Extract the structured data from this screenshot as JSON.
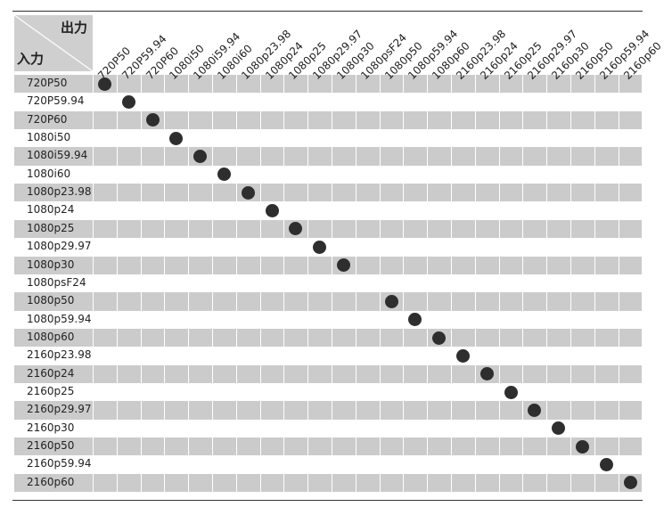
{
  "header": {
    "output_label": "出力",
    "input_label": "入力"
  },
  "columns": [
    "720P50",
    "720P59.94",
    "720P60",
    "1080i50",
    "1080i59.94",
    "1080i60",
    "1080p23.98",
    "1080p24",
    "1080p25",
    "1080p29.97",
    "1080p30",
    "1080psF24",
    "1080p50",
    "1080p59.94",
    "1080p60",
    "2160p23.98",
    "2160p24",
    "2160p25",
    "2160p29.97",
    "2160p30",
    "2160p50",
    "2160p59.94",
    "2160p60"
  ],
  "rows": [
    {
      "label": "720P50",
      "supported": [
        "720P50"
      ]
    },
    {
      "label": "720P59.94",
      "supported": [
        "720P59.94"
      ]
    },
    {
      "label": "720P60",
      "supported": [
        "720P60"
      ]
    },
    {
      "label": "1080i50",
      "supported": [
        "1080i50"
      ]
    },
    {
      "label": "1080i59.94",
      "supported": [
        "1080i59.94"
      ]
    },
    {
      "label": "1080i60",
      "supported": [
        "1080i60"
      ]
    },
    {
      "label": "1080p23.98",
      "supported": [
        "1080p23.98"
      ]
    },
    {
      "label": "1080p24",
      "supported": [
        "1080p24"
      ]
    },
    {
      "label": "1080p25",
      "supported": [
        "1080p25"
      ]
    },
    {
      "label": "1080p29.97",
      "supported": [
        "1080p29.97"
      ]
    },
    {
      "label": "1080p30",
      "supported": [
        "1080p30"
      ]
    },
    {
      "label": "1080psF24",
      "supported": []
    },
    {
      "label": "1080p50",
      "supported": [
        "1080p50"
      ]
    },
    {
      "label": "1080p59.94",
      "supported": [
        "1080p59.94"
      ]
    },
    {
      "label": "1080p60",
      "supported": [
        "1080p60"
      ]
    },
    {
      "label": "2160p23.98",
      "supported": [
        "2160p23.98"
      ]
    },
    {
      "label": "2160p24",
      "supported": [
        "2160p24"
      ]
    },
    {
      "label": "2160p25",
      "supported": [
        "2160p25"
      ]
    },
    {
      "label": "2160p29.97",
      "supported": [
        "2160p29.97"
      ]
    },
    {
      "label": "2160p30",
      "supported": [
        "2160p30"
      ]
    },
    {
      "label": "2160p50",
      "supported": [
        "2160p50"
      ]
    },
    {
      "label": "2160p59.94",
      "supported": [
        "2160p59.94"
      ]
    },
    {
      "label": "2160p60",
      "supported": [
        "2160p60"
      ]
    }
  ],
  "colors": {
    "shade": "#cbcbcb",
    "dot": "#2e2e2e",
    "rule": "#333333"
  }
}
